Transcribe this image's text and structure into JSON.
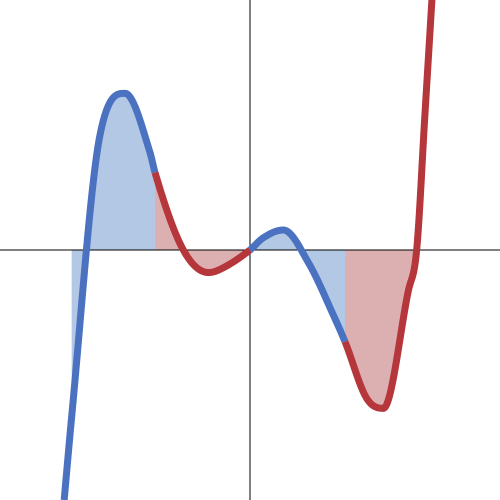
{
  "chart_data": {
    "type": "line",
    "title": "",
    "xlabel": "",
    "ylabel": "",
    "xlim": [
      -3,
      3
    ],
    "ylim": [
      -3,
      3
    ],
    "grid": false,
    "legend": "none",
    "function_samples": {
      "x": [
        -2.23,
        -2.14,
        -1.8,
        -1.5,
        -1.2,
        -1.14,
        -0.8,
        -0.5,
        -0.4,
        0,
        0.15,
        0.4,
        0.7,
        1.0,
        1.14,
        1.4,
        1.6,
        1.9,
        2.0,
        2.1
      ],
      "y": [
        -3.0,
        -2.0,
        1.38,
        1.88,
        1.17,
        0.93,
        0.0,
        -0.27,
        -0.25,
        0,
        0.14,
        0.24,
        -0.15,
        -0.78,
        -1.1,
        -1.78,
        -1.9,
        -0.49,
        0.0,
        1.64
      ]
    },
    "color_segments": [
      {
        "x_range": [
          -2.23,
          -1.14
        ],
        "color": "blue"
      },
      {
        "x_range": [
          -1.14,
          0
        ],
        "color": "red"
      },
      {
        "x_range": [
          0,
          1.14
        ],
        "color": "blue"
      },
      {
        "x_range": [
          1.14,
          2.2
        ],
        "color": "red"
      }
    ],
    "shaded_regions": [
      {
        "x_range": [
          -2.14,
          -1.14
        ],
        "fill": "blue"
      },
      {
        "x_range": [
          -1.14,
          0
        ],
        "fill": "red"
      },
      {
        "x_range": [
          0,
          1.14
        ],
        "fill": "blue"
      },
      {
        "x_range": [
          1.14,
          2.0
        ],
        "fill": "red"
      }
    ],
    "colors": {
      "blue_line": "#4a72c0",
      "red_line": "#b5363b",
      "blue_fill": "#b3c8e4",
      "red_fill": "#dcafb1",
      "axis": "#000000"
    }
  }
}
